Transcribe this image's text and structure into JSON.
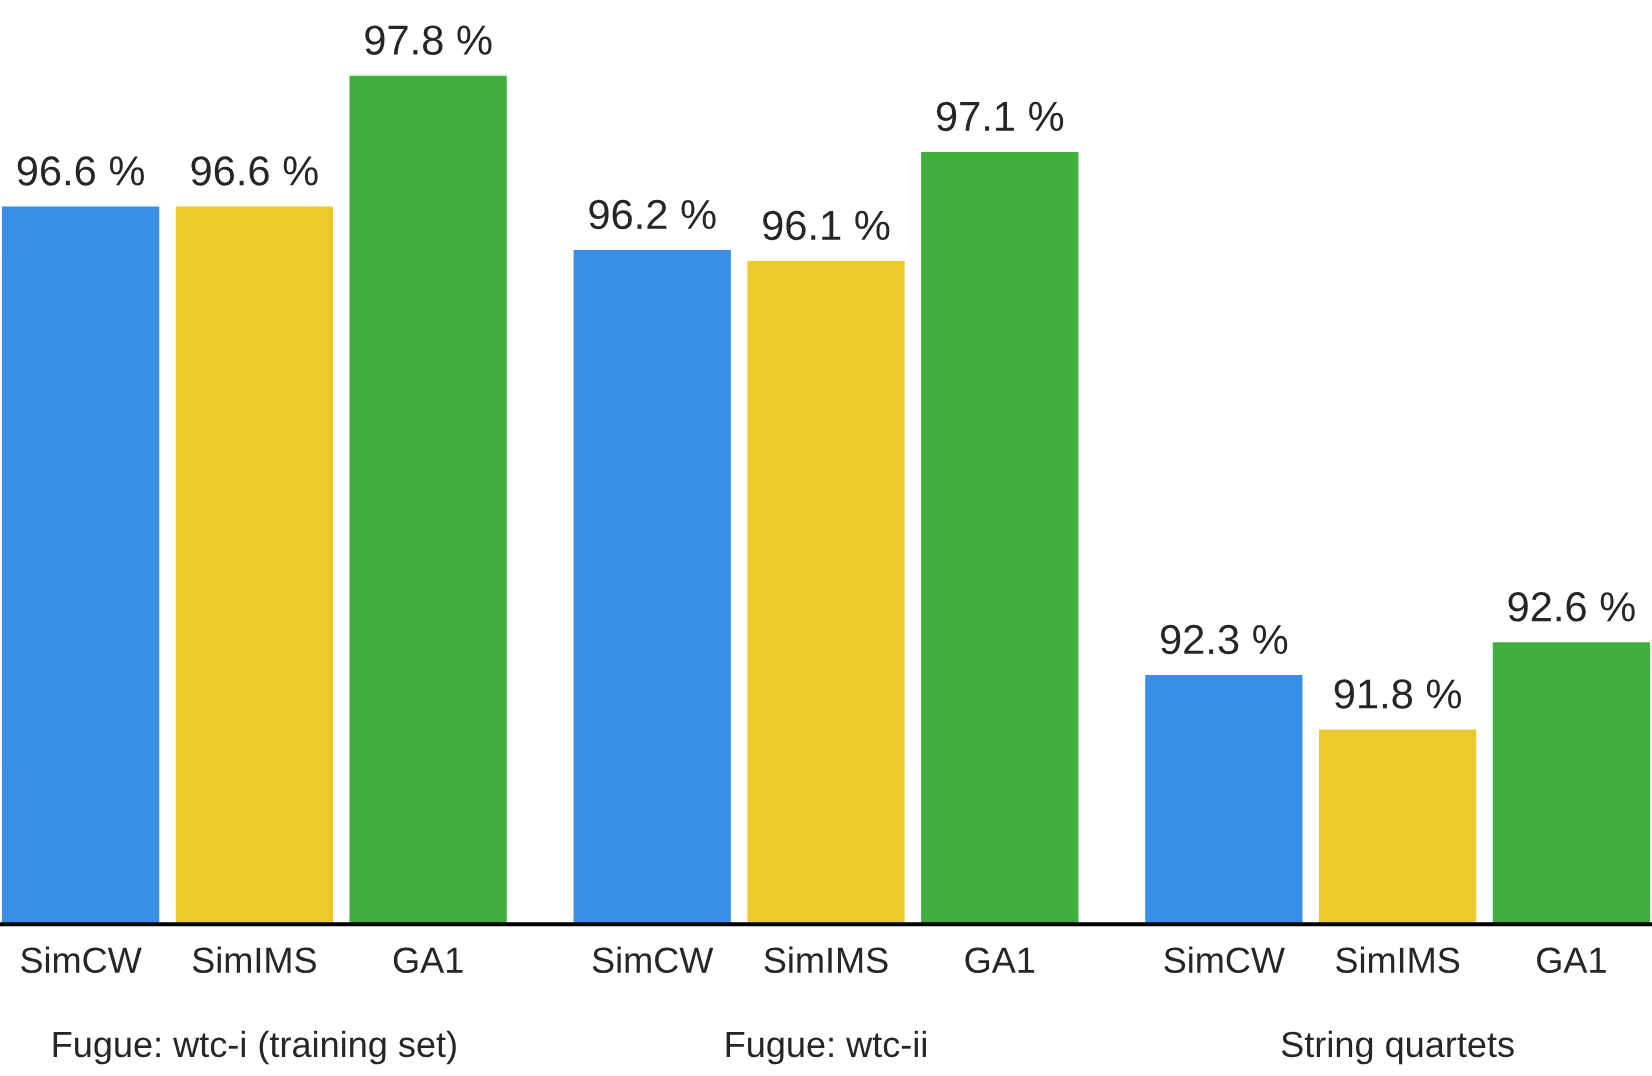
{
  "chart_data": {
    "type": "bar",
    "categories": [
      "Fugue: wtc-i (training set)",
      "Fugue: wtc-ii",
      "String quartets"
    ],
    "series": [
      {
        "name": "SimCW",
        "color": "#3a8ee6",
        "values": [
          96.6,
          96.2,
          92.3
        ],
        "value_labels": [
          "96.6 %",
          "96.2 %",
          "92.3 %"
        ]
      },
      {
        "name": "SimIMS",
        "color": "#ecc92c",
        "values": [
          96.6,
          96.1,
          91.8
        ],
        "value_labels": [
          "96.6 %",
          "96.1 %",
          "91.8 %"
        ]
      },
      {
        "name": "GA1",
        "color": "#3fae3e",
        "values": [
          97.8,
          97.1,
          92.6
        ],
        "value_labels": [
          "97.8 %",
          "97.1 %",
          "92.6 %"
        ]
      }
    ],
    "ylim": [
      90,
      97.8
    ],
    "grid": false,
    "legend": false
  }
}
